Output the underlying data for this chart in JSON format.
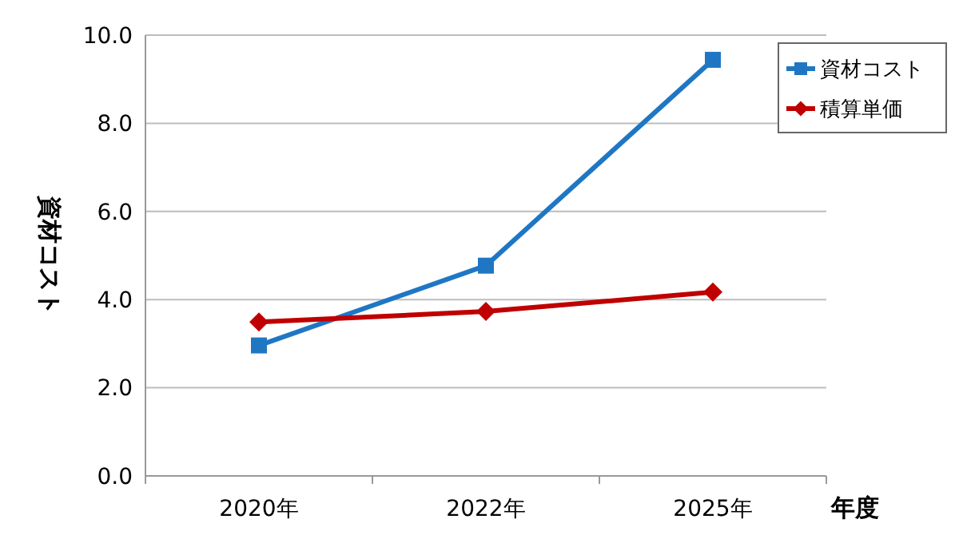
{
  "chart_data": {
    "type": "line",
    "xlabel": "年度",
    "ylabel": "資材コスト",
    "categories": [
      "2020年",
      "2022年",
      "2025年"
    ],
    "ylim": [
      0,
      10
    ],
    "yticks": [
      {
        "value": 0,
        "label": "0.0"
      },
      {
        "value": 2,
        "label": "2.0"
      },
      {
        "value": 4,
        "label": "4.0"
      },
      {
        "value": 6,
        "label": "6.0"
      },
      {
        "value": 8,
        "label": "8.0"
      },
      {
        "value": 10,
        "label": "10.0"
      }
    ],
    "grid": "y",
    "legend": "top right",
    "series": [
      {
        "name": "資材コスト",
        "color": "#1f77c4",
        "marker": "square",
        "values": [
          2.96,
          4.77,
          9.44
        ]
      },
      {
        "name": "積算単価",
        "color": "#c00000",
        "marker": "diamond",
        "values": [
          3.49,
          3.73,
          4.17
        ]
      }
    ]
  }
}
